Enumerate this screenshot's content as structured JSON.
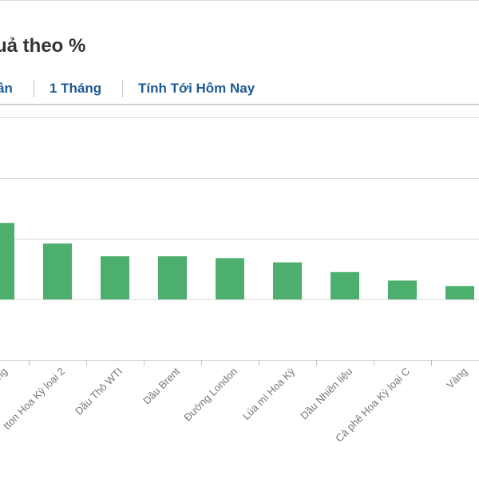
{
  "header": {
    "title": "uả theo %"
  },
  "tabs": [
    {
      "label": "ần"
    },
    {
      "label": "1 Tháng"
    },
    {
      "label": "Tính Tới Hôm Nay"
    }
  ],
  "colors": {
    "bar": "#4caf6e",
    "tab_text": "#1d5a96",
    "grid": "#d9d9d9",
    "axis_label": "#777777"
  },
  "chart_data": {
    "type": "bar",
    "title": "",
    "xlabel": "",
    "ylabel": "",
    "ylim": [
      -1,
      3
    ],
    "grid": true,
    "categories": [
      "ong",
      "tton Hoa Kỳ loại 2",
      "Dầu Thô WTI",
      "Dầu Brent",
      "Đường London",
      "Lúa mì Hoa Kỳ",
      "Dầu Nhiên liệu",
      "Cà phê Hoa Kỳ loại C",
      "Vàng"
    ],
    "values": [
      1.26,
      0.92,
      0.71,
      0.71,
      0.68,
      0.61,
      0.45,
      0.31,
      0.22
    ]
  }
}
